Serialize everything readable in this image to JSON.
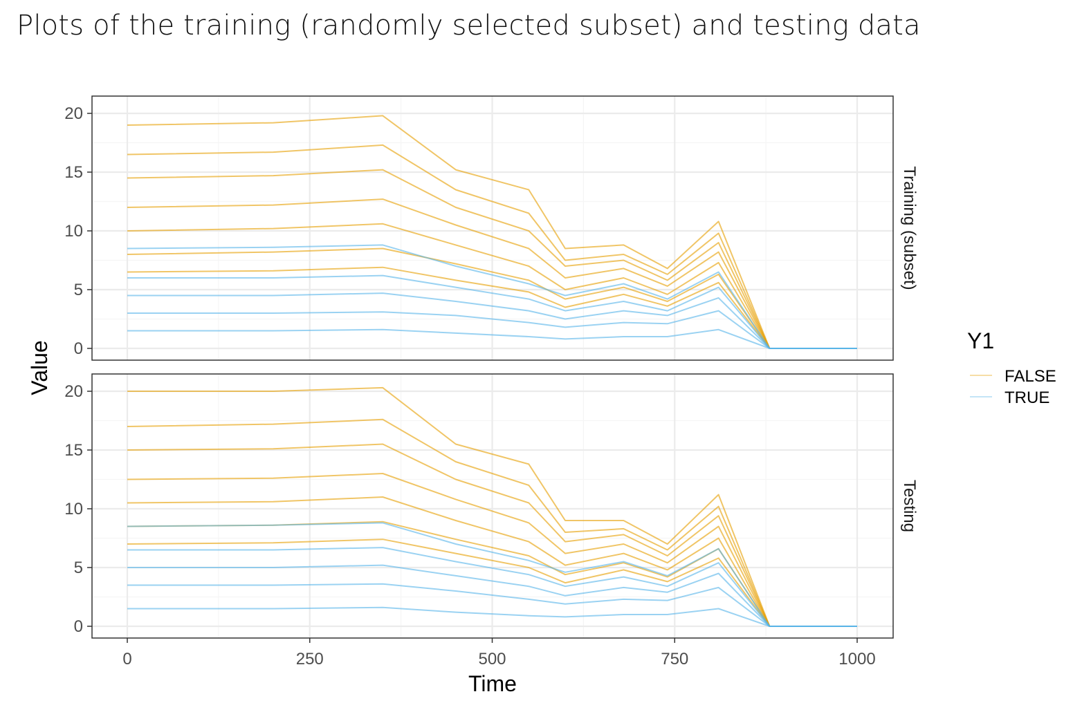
{
  "title": "Plots of the training (randomly selected subset) and testing data",
  "colors": {
    "FALSE": "#E69F00",
    "TRUE": "#56B4E9",
    "grid_major": "#ebebeb",
    "grid_minor": "#f5f5f5",
    "panel_border": "#333333"
  },
  "chart_data": {
    "type": "line",
    "xlabel": "Time",
    "ylabel": "Value",
    "xlim": [
      0,
      1000
    ],
    "ylim": [
      0,
      20
    ],
    "x_ticks": [
      "0",
      "250",
      "500",
      "750",
      "1000"
    ],
    "y_ticks": [
      "0",
      "5",
      "10",
      "15",
      "20"
    ],
    "grid": true,
    "legend": {
      "title": "Y1",
      "position": "right",
      "entries": [
        {
          "label": "FALSE",
          "color": "#E69F00"
        },
        {
          "label": "TRUE",
          "color": "#56B4E9"
        }
      ]
    },
    "facets": [
      {
        "label": "Training (subset)",
        "series": [
          {
            "group": "FALSE",
            "x": [
              0,
              200,
              350,
              450,
              550,
              600,
              680,
              740,
              810,
              880,
              1000
            ],
            "y": [
              19.0,
              19.2,
              19.8,
              15.2,
              13.5,
              8.5,
              8.8,
              6.8,
              10.8,
              0,
              0
            ]
          },
          {
            "group": "FALSE",
            "x": [
              0,
              200,
              350,
              450,
              550,
              600,
              680,
              740,
              810,
              880,
              1000
            ],
            "y": [
              16.5,
              16.7,
              17.3,
              13.5,
              11.5,
              7.5,
              8.0,
              6.3,
              9.8,
              0,
              0
            ]
          },
          {
            "group": "FALSE",
            "x": [
              0,
              200,
              350,
              450,
              550,
              600,
              680,
              740,
              810,
              880,
              1000
            ],
            "y": [
              14.5,
              14.7,
              15.2,
              12.0,
              10.0,
              7.0,
              7.5,
              5.8,
              9.0,
              0,
              0
            ]
          },
          {
            "group": "FALSE",
            "x": [
              0,
              200,
              350,
              450,
              550,
              600,
              680,
              740,
              810,
              880,
              1000
            ],
            "y": [
              12.0,
              12.2,
              12.7,
              10.5,
              8.5,
              6.0,
              6.8,
              5.3,
              8.2,
              0,
              0
            ]
          },
          {
            "group": "FALSE",
            "x": [
              0,
              200,
              350,
              450,
              550,
              600,
              680,
              740,
              810,
              880,
              1000
            ],
            "y": [
              10.0,
              10.2,
              10.6,
              8.8,
              7.0,
              5.0,
              6.0,
              4.6,
              7.3,
              0,
              0
            ]
          },
          {
            "group": "FALSE",
            "x": [
              0,
              200,
              350,
              450,
              550,
              600,
              680,
              740,
              810,
              880,
              1000
            ],
            "y": [
              8.0,
              8.2,
              8.5,
              7.2,
              5.8,
              4.2,
              5.2,
              4.0,
              6.3,
              0,
              0
            ]
          },
          {
            "group": "FALSE",
            "x": [
              0,
              200,
              350,
              450,
              550,
              600,
              680,
              740,
              810,
              880,
              1000
            ],
            "y": [
              6.5,
              6.6,
              6.9,
              5.8,
              4.8,
              3.5,
              4.6,
              3.6,
              5.6,
              0,
              0
            ]
          },
          {
            "group": "TRUE",
            "x": [
              0,
              200,
              350,
              450,
              550,
              600,
              680,
              740,
              810,
              880,
              1000
            ],
            "y": [
              8.5,
              8.6,
              8.8,
              7.0,
              5.5,
              4.5,
              5.5,
              4.2,
              6.5,
              0,
              0
            ]
          },
          {
            "group": "TRUE",
            "x": [
              0,
              200,
              350,
              450,
              550,
              600,
              680,
              740,
              810,
              880,
              1000
            ],
            "y": [
              6.0,
              6.0,
              6.2,
              5.2,
              4.2,
              3.2,
              4.0,
              3.2,
              5.2,
              0,
              0
            ]
          },
          {
            "group": "TRUE",
            "x": [
              0,
              200,
              350,
              450,
              550,
              600,
              680,
              740,
              810,
              880,
              1000
            ],
            "y": [
              4.5,
              4.5,
              4.7,
              4.0,
              3.2,
              2.5,
              3.2,
              2.8,
              4.3,
              0,
              0
            ]
          },
          {
            "group": "TRUE",
            "x": [
              0,
              200,
              350,
              450,
              550,
              600,
              680,
              740,
              810,
              880,
              1000
            ],
            "y": [
              3.0,
              3.0,
              3.1,
              2.8,
              2.2,
              1.8,
              2.2,
              2.1,
              3.2,
              0,
              0
            ]
          },
          {
            "group": "TRUE",
            "x": [
              0,
              200,
              350,
              450,
              550,
              600,
              680,
              740,
              810,
              880,
              1000
            ],
            "y": [
              1.5,
              1.5,
              1.6,
              1.3,
              1.0,
              0.8,
              1.0,
              1.0,
              1.6,
              0,
              0
            ]
          }
        ]
      },
      {
        "label": "Testing",
        "series": [
          {
            "group": "FALSE",
            "x": [
              0,
              200,
              350,
              450,
              550,
              600,
              680,
              740,
              810,
              880,
              1000
            ],
            "y": [
              20.0,
              20.0,
              20.3,
              15.5,
              13.8,
              9.0,
              9.0,
              7.0,
              11.2,
              0,
              0
            ]
          },
          {
            "group": "FALSE",
            "x": [
              0,
              200,
              350,
              450,
              550,
              600,
              680,
              740,
              810,
              880,
              1000
            ],
            "y": [
              17.0,
              17.2,
              17.6,
              14.0,
              12.0,
              8.0,
              8.3,
              6.5,
              10.2,
              0,
              0
            ]
          },
          {
            "group": "FALSE",
            "x": [
              0,
              200,
              350,
              450,
              550,
              600,
              680,
              740,
              810,
              880,
              1000
            ],
            "y": [
              15.0,
              15.1,
              15.5,
              12.5,
              10.5,
              7.2,
              7.8,
              6.0,
              9.4,
              0,
              0
            ]
          },
          {
            "group": "FALSE",
            "x": [
              0,
              200,
              350,
              450,
              550,
              600,
              680,
              740,
              810,
              880,
              1000
            ],
            "y": [
              12.5,
              12.6,
              13.0,
              10.8,
              8.8,
              6.2,
              7.0,
              5.4,
              8.5,
              0,
              0
            ]
          },
          {
            "group": "FALSE",
            "x": [
              0,
              200,
              350,
              450,
              550,
              600,
              680,
              740,
              810,
              880,
              1000
            ],
            "y": [
              10.5,
              10.6,
              11.0,
              9.0,
              7.2,
              5.2,
              6.2,
              4.8,
              7.5,
              0,
              0
            ]
          },
          {
            "group": "FALSE",
            "x": [
              0,
              200,
              350,
              450,
              550,
              600,
              680,
              740,
              810,
              880,
              1000
            ],
            "y": [
              8.5,
              8.6,
              8.9,
              7.4,
              6.0,
              4.4,
              5.4,
              4.2,
              6.6,
              0,
              0
            ]
          },
          {
            "group": "FALSE",
            "x": [
              0,
              200,
              350,
              450,
              550,
              600,
              680,
              740,
              810,
              880,
              1000
            ],
            "y": [
              7.0,
              7.1,
              7.4,
              6.2,
              5.0,
              3.7,
              4.8,
              3.8,
              5.8,
              0,
              0
            ]
          },
          {
            "group": "TRUE",
            "x": [
              0,
              200,
              350,
              450,
              550,
              600,
              680,
              740,
              810,
              880,
              1000
            ],
            "y": [
              8.5,
              8.6,
              8.8,
              7.0,
              5.6,
              4.6,
              5.5,
              4.3,
              6.6,
              0,
              0
            ]
          },
          {
            "group": "TRUE",
            "x": [
              0,
              200,
              350,
              450,
              550,
              600,
              680,
              740,
              810,
              880,
              1000
            ],
            "y": [
              6.5,
              6.5,
              6.7,
              5.5,
              4.4,
              3.4,
              4.2,
              3.4,
              5.4,
              0,
              0
            ]
          },
          {
            "group": "TRUE",
            "x": [
              0,
              200,
              350,
              450,
              550,
              600,
              680,
              740,
              810,
              880,
              1000
            ],
            "y": [
              5.0,
              5.0,
              5.2,
              4.3,
              3.4,
              2.6,
              3.3,
              2.9,
              4.5,
              0,
              0
            ]
          },
          {
            "group": "TRUE",
            "x": [
              0,
              200,
              350,
              450,
              550,
              600,
              680,
              740,
              810,
              880,
              1000
            ],
            "y": [
              3.5,
              3.5,
              3.6,
              3.0,
              2.3,
              1.9,
              2.3,
              2.2,
              3.3,
              0,
              0
            ]
          },
          {
            "group": "TRUE",
            "x": [
              0,
              200,
              350,
              450,
              550,
              600,
              680,
              740,
              810,
              880,
              1000
            ],
            "y": [
              1.5,
              1.5,
              1.6,
              1.2,
              0.9,
              0.8,
              1.0,
              1.0,
              1.5,
              0,
              0
            ]
          }
        ]
      }
    ]
  }
}
